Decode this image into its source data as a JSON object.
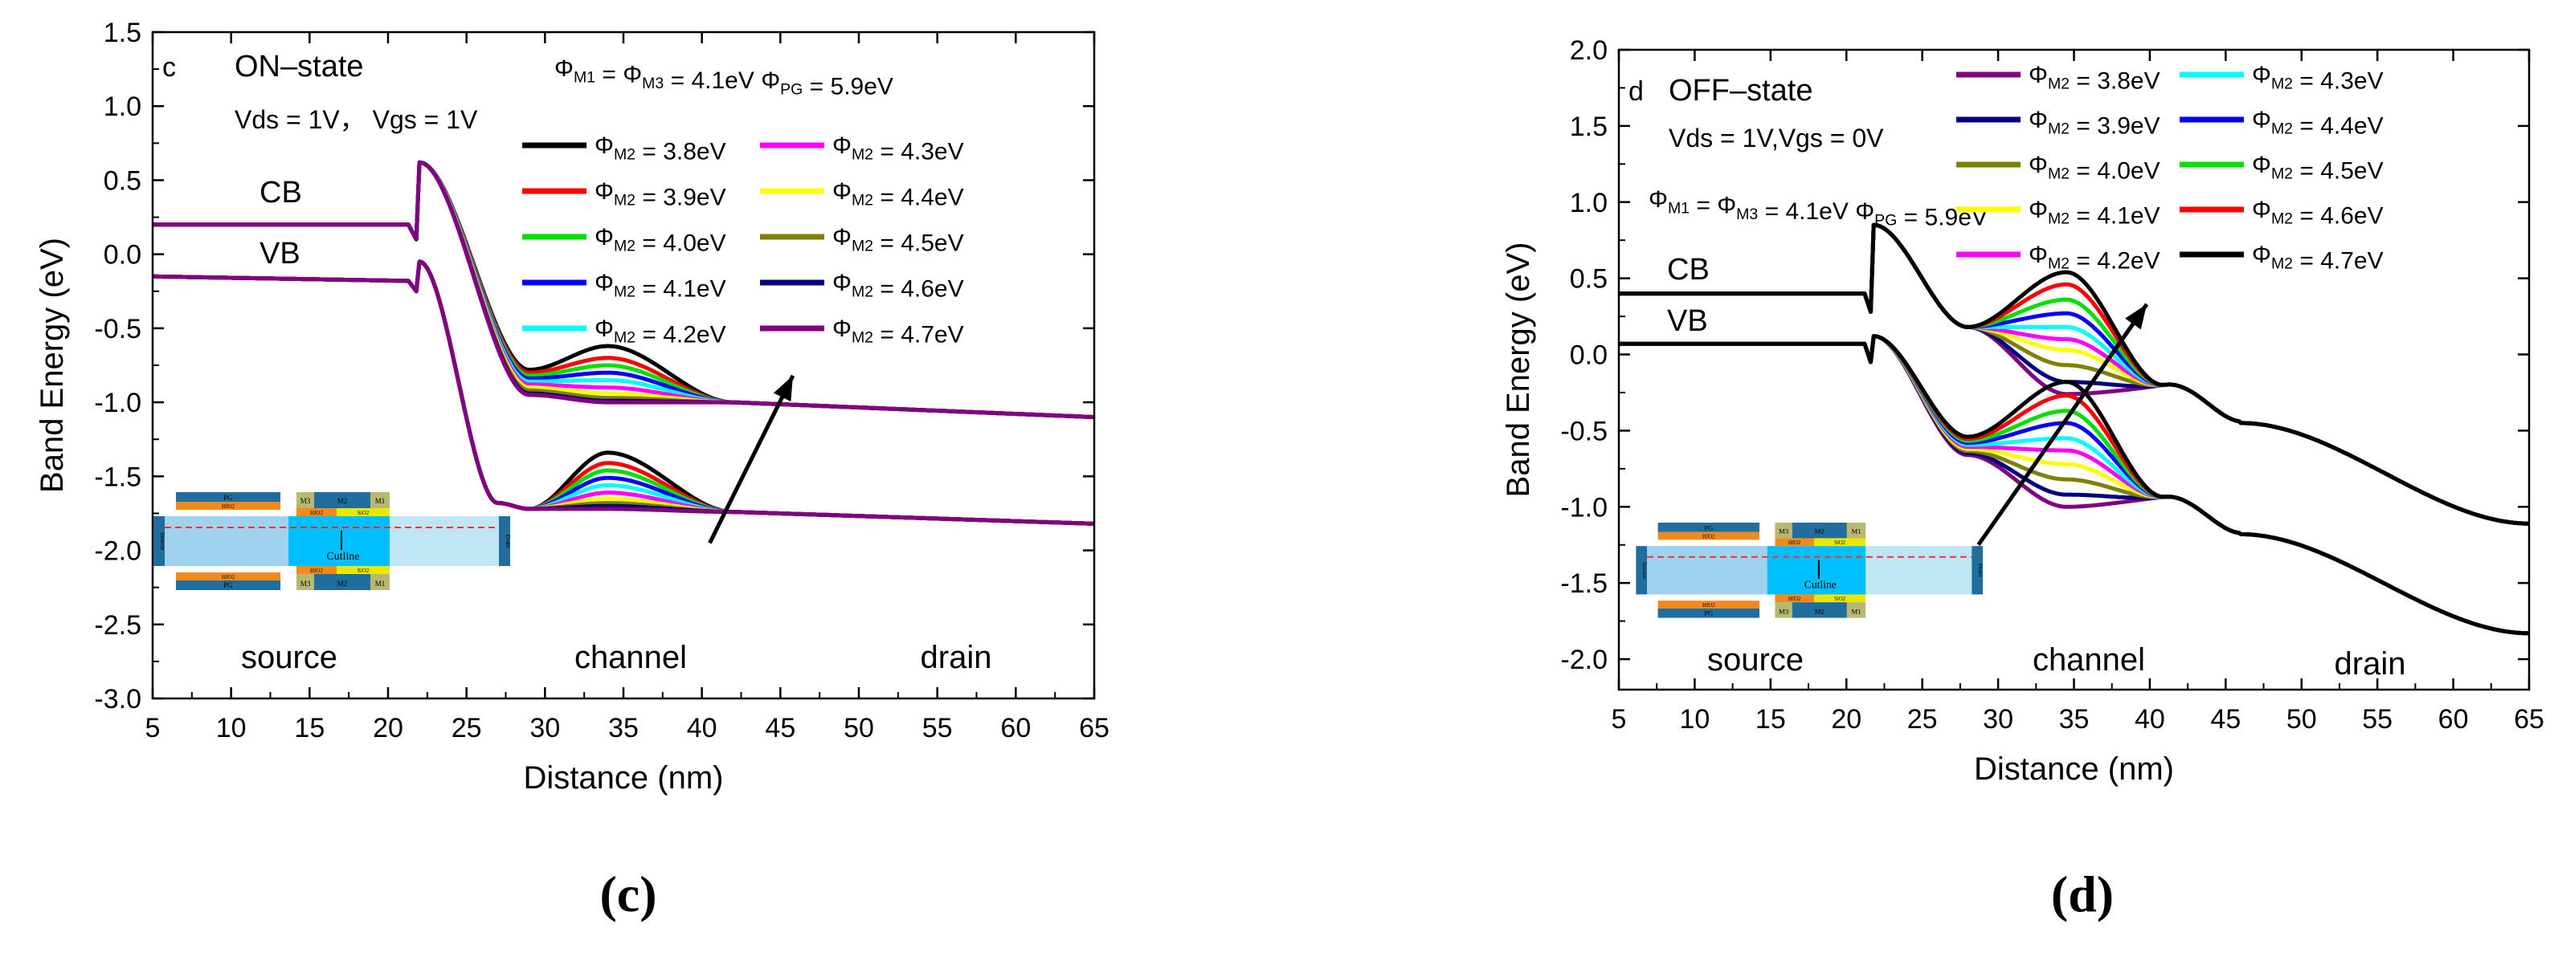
{
  "panels": [
    {
      "id": "c",
      "panel_letter": "c",
      "state_label": "ON–state",
      "bias_label": "Vds = 1V， Vgs = 1V",
      "work_function_label": "ΦM1 = ΦM3 = 4.1eV  ΦPG = 5.9eV",
      "caption": "(c)",
      "region_labels": [
        "source",
        "channel",
        "drain"
      ],
      "band_labels": [
        "CB",
        "VB"
      ],
      "inset_labels": {
        "pg": "PG",
        "hfo2": "HfO2",
        "sio2": "SiO2",
        "m1": "M1",
        "m2": "M2",
        "m3": "M3",
        "source": "Source",
        "drain": "Drain",
        "cutline": "Cutline"
      }
    },
    {
      "id": "d",
      "panel_letter": "d",
      "state_label": "OFF–state",
      "bias_label": "Vds = 1V,Vgs = 0V",
      "work_function_label": "ΦM1 = ΦM3 = 4.1eV  ΦPG = 5.9eV",
      "caption": "(d)",
      "region_labels": [
        "source",
        "channel",
        "drain"
      ],
      "band_labels": [
        "CB",
        "VB"
      ],
      "inset_labels": {
        "pg": "PG",
        "hfo2": "HfO2",
        "sio2": "SiO2",
        "m1": "M1",
        "m2": "M2",
        "m3": "M3",
        "source": "Source",
        "drain": "Drain",
        "cutline": "Cutline"
      }
    }
  ],
  "chart_data": [
    {
      "type": "line",
      "panel": "c",
      "title": "",
      "xlabel": "Distance (nm)",
      "ylabel": "Band Energy (eV)",
      "xlim": [
        5,
        65
      ],
      "ylim": [
        -3.0,
        1.5
      ],
      "xticks": [
        5,
        10,
        15,
        20,
        25,
        30,
        35,
        40,
        45,
        50,
        55,
        60,
        65
      ],
      "yticks": [
        -3.0,
        -2.5,
        -2.0,
        -1.5,
        -1.0,
        -0.5,
        0.0,
        0.5,
        1.0,
        1.5
      ],
      "tick_labels_y": [
        "-3.0",
        "-2.5",
        "-2.0",
        "-1.5",
        "-1.0",
        "-0.5",
        "0.0",
        "0.5",
        "1.0",
        "1.5"
      ],
      "grid": false,
      "legend_placement": "top-right",
      "legend_columns": 2,
      "bands": {
        "CB": {
          "source_level": 0.2,
          "spike_x": 22.0,
          "spike_y": 0.62,
          "drain_level": -1.1
        },
        "VB": {
          "source_level": -0.15,
          "spike_x": 22.0,
          "spike_y": -0.05,
          "drain_level": -1.82
        }
      },
      "series": [
        {
          "name": "ΦM2 = 3.8eV",
          "color": "#000000",
          "phiM2": 3.8,
          "cb_channel_min": -0.78,
          "cb_channel_peak": -0.62,
          "vb_channel_peak": -1.34
        },
        {
          "name": "ΦM2 = 3.9eV",
          "color": "#ff0000",
          "phiM2": 3.9,
          "cb_channel_min": -0.8,
          "cb_channel_peak": -0.7,
          "vb_channel_peak": -1.41
        },
        {
          "name": "ΦM2 = 4.0eV",
          "color": "#00e000",
          "phiM2": 4.0,
          "cb_channel_min": -0.82,
          "cb_channel_peak": -0.75,
          "vb_channel_peak": -1.46
        },
        {
          "name": "ΦM2 = 4.1eV",
          "color": "#0000ff",
          "phiM2": 4.1,
          "cb_channel_min": -0.84,
          "cb_channel_peak": -0.8,
          "vb_channel_peak": -1.51
        },
        {
          "name": "ΦM2 = 4.2eV",
          "color": "#00ffff",
          "phiM2": 4.2,
          "cb_channel_min": -0.86,
          "cb_channel_peak": -0.85,
          "vb_channel_peak": -1.56
        },
        {
          "name": "ΦM2 = 4.3eV",
          "color": "#ff00ff",
          "phiM2": 4.3,
          "cb_channel_min": -0.88,
          "cb_channel_peak": -0.9,
          "vb_channel_peak": -1.61
        },
        {
          "name": "ΦM2 = 4.4eV",
          "color": "#ffff00",
          "phiM2": 4.4,
          "cb_channel_min": -0.9,
          "cb_channel_peak": -0.94,
          "vb_channel_peak": -1.65
        },
        {
          "name": "ΦM2 = 4.5eV",
          "color": "#808000",
          "phiM2": 4.5,
          "cb_channel_min": -0.92,
          "cb_channel_peak": -0.97,
          "vb_channel_peak": -1.68
        },
        {
          "name": "ΦM2 = 4.6eV",
          "color": "#000080",
          "phiM2": 4.6,
          "cb_channel_min": -0.94,
          "cb_channel_peak": -0.99,
          "vb_channel_peak": -1.7
        },
        {
          "name": "ΦM2 = 4.7eV",
          "color": "#800080",
          "phiM2": 4.7,
          "cb_channel_min": -0.95,
          "cb_channel_peak": -1.0,
          "vb_channel_peak": -1.72
        }
      ],
      "arrow": {
        "from": [
          40.5,
          -1.95
        ],
        "to": [
          45.8,
          -0.82
        ]
      }
    },
    {
      "type": "line",
      "panel": "d",
      "title": "",
      "xlabel": "Distance (nm)",
      "ylabel": "Band Energy (eV)",
      "xlim": [
        5,
        65
      ],
      "ylim": [
        -2.2,
        2.0
      ],
      "xticks": [
        5,
        10,
        15,
        20,
        25,
        30,
        35,
        40,
        45,
        50,
        55,
        60,
        65
      ],
      "yticks": [
        -2.0,
        -1.5,
        -1.0,
        -0.5,
        0.0,
        0.5,
        1.0,
        1.5,
        2.0
      ],
      "tick_labels_y": [
        "-2.0",
        "-1.5",
        "-1.0",
        "-0.5",
        "0.0",
        "0.5",
        "1.0",
        "1.5",
        "2.0"
      ],
      "grid": false,
      "legend_placement": "top-right",
      "legend_columns": 2,
      "bands": {
        "CB": {
          "source_level": 0.4,
          "spike_x": 21.8,
          "spike_y": 0.85,
          "drain_level": -1.11
        },
        "VB": {
          "source_level": 0.07,
          "spike_x": 21.8,
          "spike_y": 0.12,
          "drain_level": -1.83
        }
      },
      "series": [
        {
          "name": "ΦM2 = 3.8eV",
          "color": "#800080",
          "phiM2": 3.8,
          "cb_channel_peak": -0.26,
          "vb_channel_peak": -1.0
        },
        {
          "name": "ΦM2 = 3.9eV",
          "color": "#000080",
          "phiM2": 3.9,
          "cb_channel_peak": -0.18,
          "vb_channel_peak": -0.92
        },
        {
          "name": "ΦM2 = 4.0eV",
          "color": "#808000",
          "phiM2": 4.0,
          "cb_channel_peak": -0.07,
          "vb_channel_peak": -0.82
        },
        {
          "name": "ΦM2 = 4.1eV",
          "color": "#ffff00",
          "phiM2": 4.1,
          "cb_channel_peak": 0.03,
          "vb_channel_peak": -0.72
        },
        {
          "name": "ΦM2 = 4.2eV",
          "color": "#ff00ff",
          "phiM2": 4.2,
          "cb_channel_peak": 0.1,
          "vb_channel_peak": -0.63
        },
        {
          "name": "ΦM2 = 4.3eV",
          "color": "#00ffff",
          "phiM2": 4.3,
          "cb_channel_peak": 0.18,
          "vb_channel_peak": -0.55
        },
        {
          "name": "ΦM2 = 4.4eV",
          "color": "#0000ff",
          "phiM2": 4.4,
          "cb_channel_peak": 0.27,
          "vb_channel_peak": -0.45
        },
        {
          "name": "ΦM2 = 4.5eV",
          "color": "#00e000",
          "phiM2": 4.5,
          "cb_channel_peak": 0.36,
          "vb_channel_peak": -0.37
        },
        {
          "name": "ΦM2 = 4.6eV",
          "color": "#ff0000",
          "phiM2": 4.6,
          "cb_channel_peak": 0.46,
          "vb_channel_peak": -0.27
        },
        {
          "name": "ΦM2 = 4.7eV",
          "color": "#000000",
          "phiM2": 4.7,
          "cb_channel_peak": 0.54,
          "vb_channel_peak": -0.18
        }
      ],
      "arrow": {
        "from": [
          28.7,
          -1.25
        ],
        "to": [
          39.8,
          0.33
        ]
      }
    }
  ]
}
